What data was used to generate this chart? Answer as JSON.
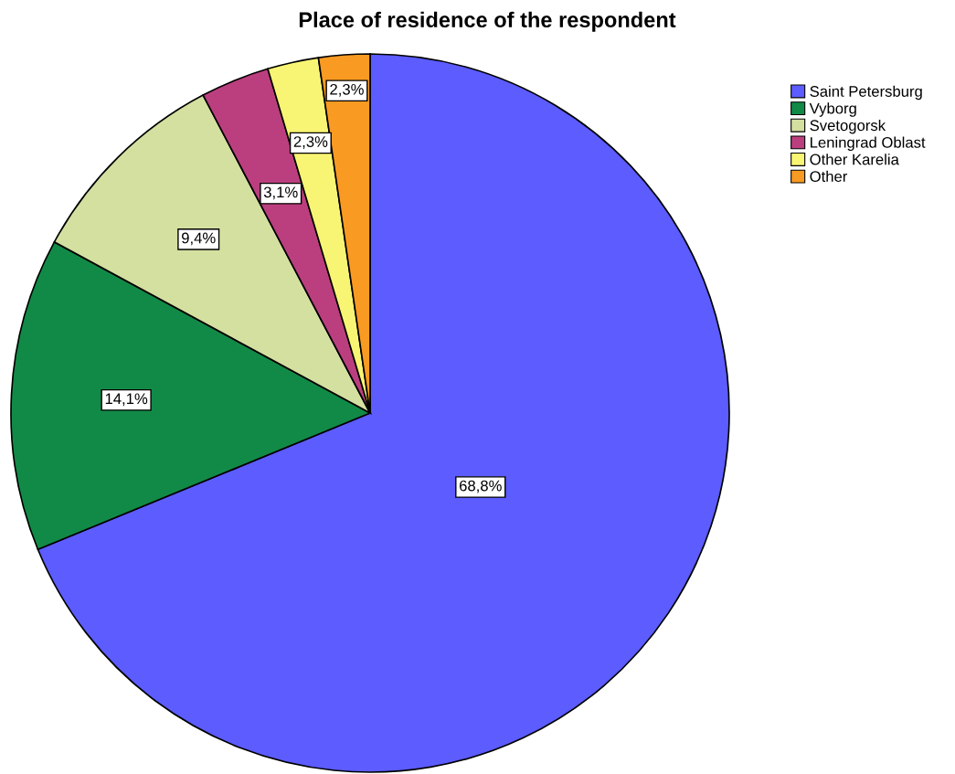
{
  "chart_data": {
    "type": "pie",
    "title": "Place of residence of the respondent",
    "categories": [
      "Saint Petersburg",
      "Vyborg",
      "Svetogorsk",
      "Leningrad Oblast",
      "Other Karelia",
      "Other"
    ],
    "values": [
      68.8,
      14.1,
      9.4,
      3.1,
      2.3,
      2.3
    ],
    "value_labels": [
      "68,8%",
      "14,1%",
      "9,4%",
      "3,1%",
      "2,3%",
      "2,3%"
    ],
    "colors": [
      "#5c5cff",
      "#128a47",
      "#d3e0a0",
      "#bb3f7e",
      "#f9f574",
      "#f99a22"
    ],
    "legend": "top right"
  }
}
